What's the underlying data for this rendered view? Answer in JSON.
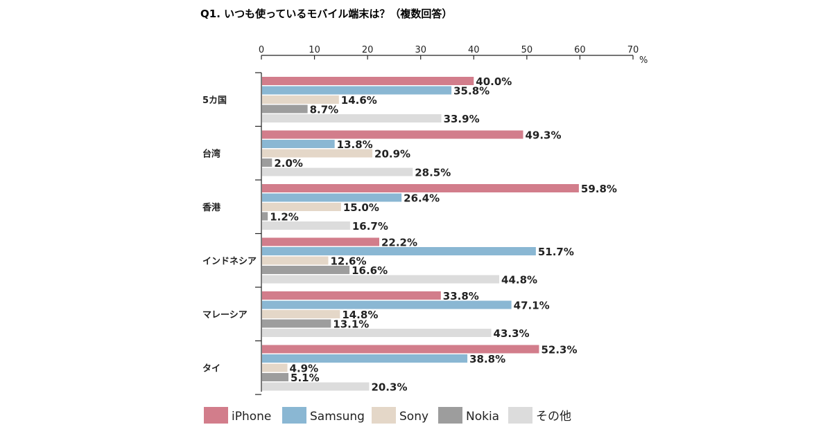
{
  "chart_data": {
    "type": "bar",
    "orientation": "horizontal",
    "title": "Q1. いつも使っているモバイル端末は？（複数回答）",
    "unit_label": "%",
    "xlim": [
      0,
      70
    ],
    "x_ticks": [
      "0",
      "10",
      "20",
      "30",
      "40",
      "50",
      "60",
      "70"
    ],
    "categories": [
      "5カ国",
      "台湾",
      "香港",
      "インドネシア",
      "マレーシア",
      "タイ"
    ],
    "series": [
      {
        "name": "iPhone",
        "color": "#d27d8b",
        "values": [
          40.0,
          49.3,
          59.8,
          22.2,
          33.8,
          52.3
        ],
        "labels": [
          "40.0%",
          "49.3%",
          "59.8%",
          "22.2%",
          "33.8%",
          "52.3%"
        ]
      },
      {
        "name": "Samsung",
        "color": "#8ab7d3",
        "values": [
          35.8,
          13.8,
          26.4,
          51.7,
          47.1,
          38.8
        ],
        "labels": [
          "35.8%",
          "13.8%",
          "26.4%",
          "51.7%",
          "47.1%",
          "38.8%"
        ]
      },
      {
        "name": "Sony",
        "color": "#e4d7c8",
        "values": [
          14.6,
          20.9,
          15.0,
          12.6,
          14.8,
          4.9
        ],
        "labels": [
          "14.6%",
          "20.9%",
          "15.0%",
          "12.6%",
          "14.8%",
          "4.9%"
        ]
      },
      {
        "name": "Nokia",
        "color": "#9d9d9d",
        "values": [
          8.7,
          2.0,
          1.2,
          16.6,
          13.1,
          5.1
        ],
        "labels": [
          "8.7%",
          "2.0%",
          "1.2%",
          "16.6%",
          "13.1%",
          "5.1%"
        ]
      },
      {
        "name": "その他",
        "color": "#dcdcdc",
        "values": [
          33.9,
          28.5,
          16.7,
          44.8,
          43.3,
          20.3
        ],
        "labels": [
          "33.9%",
          "28.5%",
          "16.7%",
          "44.8%",
          "43.3%",
          "20.3%"
        ]
      }
    ],
    "legend_position": "bottom-left",
    "grid": false
  }
}
